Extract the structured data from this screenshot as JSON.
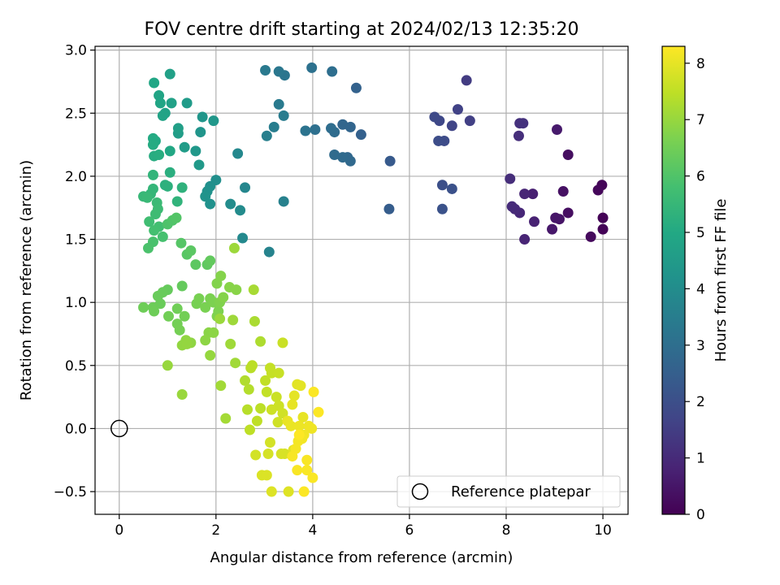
{
  "chart_data": {
    "type": "scatter",
    "title": "FOV centre drift starting at 2024/02/13 12:35:20",
    "xlabel": "Angular distance from reference (arcmin)",
    "ylabel": "Rotation from reference (arcmin)",
    "xlim": [
      -0.5,
      10.52
    ],
    "ylim": [
      -0.68,
      3.03
    ],
    "x_ticks": [
      0,
      2,
      4,
      6,
      8,
      10
    ],
    "x_tick_labels": [
      "0",
      "2",
      "4",
      "6",
      "8",
      "10"
    ],
    "y_ticks": [
      -0.5,
      0.0,
      0.5,
      1.0,
      1.5,
      2.0,
      2.5,
      3.0
    ],
    "y_tick_labels": [
      "−0.5",
      "0.0",
      "0.5",
      "1.0",
      "1.5",
      "2.0",
      "2.5",
      "3.0"
    ],
    "grid": true,
    "legend": {
      "position": "lower-right",
      "entries": [
        "Reference platepar"
      ]
    },
    "reference_point": {
      "x": 0.0,
      "y": 0.0,
      "label": "Reference platepar",
      "marker": "open-circle"
    },
    "colorbar": {
      "label": "Hours from first FF file",
      "colormap": "viridis",
      "range": [
        0,
        8.3
      ],
      "ticks": [
        0,
        1,
        2,
        3,
        4,
        5,
        6,
        7,
        8
      ],
      "tick_labels": [
        "0",
        "1",
        "2",
        "3",
        "4",
        "5",
        "6",
        "7",
        "8"
      ]
    },
    "points": [
      {
        "x": 10.0,
        "y": 1.67,
        "c": 0.05
      },
      {
        "x": 10.0,
        "y": 1.58,
        "c": 0.08
      },
      {
        "x": 9.98,
        "y": 1.93,
        "c": 0.1
      },
      {
        "x": 9.9,
        "y": 1.89,
        "c": 0.15
      },
      {
        "x": 9.75,
        "y": 1.52,
        "c": 0.2
      },
      {
        "x": 9.28,
        "y": 2.17,
        "c": 0.3
      },
      {
        "x": 9.28,
        "y": 1.71,
        "c": 0.32
      },
      {
        "x": 9.18,
        "y": 1.88,
        "c": 0.38
      },
      {
        "x": 9.1,
        "y": 1.66,
        "c": 0.45
      },
      {
        "x": 9.02,
        "y": 1.67,
        "c": 0.5
      },
      {
        "x": 8.95,
        "y": 1.58,
        "c": 0.55
      },
      {
        "x": 9.05,
        "y": 2.37,
        "c": 0.6
      },
      {
        "x": 8.55,
        "y": 1.86,
        "c": 0.72
      },
      {
        "x": 8.58,
        "y": 1.64,
        "c": 0.78
      },
      {
        "x": 8.38,
        "y": 1.5,
        "c": 0.85
      },
      {
        "x": 8.38,
        "y": 1.86,
        "c": 0.88
      },
      {
        "x": 8.28,
        "y": 1.71,
        "c": 0.92
      },
      {
        "x": 8.18,
        "y": 1.74,
        "c": 0.98
      },
      {
        "x": 8.12,
        "y": 1.76,
        "c": 1.02
      },
      {
        "x": 8.08,
        "y": 1.98,
        "c": 1.08
      },
      {
        "x": 8.26,
        "y": 2.32,
        "c": 1.12
      },
      {
        "x": 8.28,
        "y": 2.42,
        "c": 1.18
      },
      {
        "x": 8.35,
        "y": 2.42,
        "c": 1.2
      },
      {
        "x": 7.18,
        "y": 2.76,
        "c": 1.45
      },
      {
        "x": 7.25,
        "y": 2.44,
        "c": 1.55
      },
      {
        "x": 7.0,
        "y": 2.53,
        "c": 1.62
      },
      {
        "x": 6.88,
        "y": 2.4,
        "c": 1.7
      },
      {
        "x": 6.62,
        "y": 2.44,
        "c": 1.78
      },
      {
        "x": 6.52,
        "y": 2.47,
        "c": 1.85
      },
      {
        "x": 6.72,
        "y": 2.28,
        "c": 1.9
      },
      {
        "x": 6.6,
        "y": 2.28,
        "c": 1.95
      },
      {
        "x": 6.68,
        "y": 1.93,
        "c": 2.0
      },
      {
        "x": 6.88,
        "y": 1.9,
        "c": 2.05
      },
      {
        "x": 6.68,
        "y": 1.74,
        "c": 2.1
      },
      {
        "x": 5.6,
        "y": 2.12,
        "c": 2.35
      },
      {
        "x": 5.58,
        "y": 1.74,
        "c": 2.42
      },
      {
        "x": 5.0,
        "y": 2.33,
        "c": 2.55
      },
      {
        "x": 4.9,
        "y": 2.7,
        "c": 2.6
      },
      {
        "x": 4.78,
        "y": 2.39,
        "c": 2.68
      },
      {
        "x": 4.62,
        "y": 2.41,
        "c": 2.72
      },
      {
        "x": 4.72,
        "y": 2.15,
        "c": 2.78
      },
      {
        "x": 4.78,
        "y": 2.12,
        "c": 2.82
      },
      {
        "x": 4.62,
        "y": 2.15,
        "c": 2.86
      },
      {
        "x": 4.45,
        "y": 2.17,
        "c": 2.9
      },
      {
        "x": 4.45,
        "y": 2.35,
        "c": 2.93
      },
      {
        "x": 4.38,
        "y": 2.38,
        "c": 2.96
      },
      {
        "x": 4.4,
        "y": 2.83,
        "c": 3.0
      },
      {
        "x": 4.05,
        "y": 2.37,
        "c": 3.05
      },
      {
        "x": 3.98,
        "y": 2.86,
        "c": 3.1
      },
      {
        "x": 3.85,
        "y": 2.36,
        "c": 3.15
      },
      {
        "x": 3.42,
        "y": 2.8,
        "c": 3.22
      },
      {
        "x": 3.3,
        "y": 2.83,
        "c": 3.28
      },
      {
        "x": 3.02,
        "y": 2.84,
        "c": 3.35
      },
      {
        "x": 3.3,
        "y": 2.57,
        "c": 3.4
      },
      {
        "x": 3.4,
        "y": 2.48,
        "c": 3.45
      },
      {
        "x": 3.2,
        "y": 2.39,
        "c": 3.5
      },
      {
        "x": 3.05,
        "y": 2.32,
        "c": 3.55
      },
      {
        "x": 3.4,
        "y": 1.8,
        "c": 3.62
      },
      {
        "x": 3.1,
        "y": 1.4,
        "c": 3.7
      },
      {
        "x": 2.6,
        "y": 1.91,
        "c": 3.78
      },
      {
        "x": 2.45,
        "y": 2.18,
        "c": 3.85
      },
      {
        "x": 2.55,
        "y": 1.51,
        "c": 3.9
      },
      {
        "x": 2.5,
        "y": 1.73,
        "c": 3.95
      },
      {
        "x": 2.3,
        "y": 1.78,
        "c": 4.0
      },
      {
        "x": 2.0,
        "y": 1.97,
        "c": 4.08
      },
      {
        "x": 1.88,
        "y": 1.92,
        "c": 4.12
      },
      {
        "x": 1.88,
        "y": 1.78,
        "c": 4.16
      },
      {
        "x": 1.82,
        "y": 1.88,
        "c": 4.2
      },
      {
        "x": 1.78,
        "y": 1.84,
        "c": 4.24
      },
      {
        "x": 1.68,
        "y": 2.35,
        "c": 4.28
      },
      {
        "x": 1.72,
        "y": 2.47,
        "c": 4.32
      },
      {
        "x": 1.95,
        "y": 2.44,
        "c": 4.36
      },
      {
        "x": 1.58,
        "y": 2.2,
        "c": 4.4
      },
      {
        "x": 1.65,
        "y": 2.09,
        "c": 4.44
      },
      {
        "x": 1.4,
        "y": 2.58,
        "c": 4.5
      },
      {
        "x": 1.35,
        "y": 2.23,
        "c": 4.55
      },
      {
        "x": 1.22,
        "y": 2.34,
        "c": 4.6
      },
      {
        "x": 1.22,
        "y": 2.38,
        "c": 4.64
      },
      {
        "x": 1.05,
        "y": 2.81,
        "c": 4.68
      },
      {
        "x": 1.08,
        "y": 2.58,
        "c": 4.72
      },
      {
        "x": 0.95,
        "y": 2.5,
        "c": 4.76
      },
      {
        "x": 0.9,
        "y": 2.48,
        "c": 4.8
      },
      {
        "x": 0.82,
        "y": 2.64,
        "c": 4.84
      },
      {
        "x": 0.85,
        "y": 2.58,
        "c": 4.88
      },
      {
        "x": 0.72,
        "y": 2.74,
        "c": 4.92
      },
      {
        "x": 1.05,
        "y": 2.2,
        "c": 4.96
      },
      {
        "x": 0.75,
        "y": 2.28,
        "c": 5.0
      },
      {
        "x": 0.7,
        "y": 2.3,
        "c": 5.04
      },
      {
        "x": 0.7,
        "y": 2.25,
        "c": 5.08
      },
      {
        "x": 0.72,
        "y": 2.16,
        "c": 5.12
      },
      {
        "x": 0.82,
        "y": 2.17,
        "c": 5.16
      },
      {
        "x": 1.05,
        "y": 2.03,
        "c": 5.2
      },
      {
        "x": 0.95,
        "y": 1.93,
        "c": 5.24
      },
      {
        "x": 1.0,
        "y": 1.92,
        "c": 5.28
      },
      {
        "x": 1.3,
        "y": 1.91,
        "c": 5.32
      },
      {
        "x": 1.2,
        "y": 1.8,
        "c": 5.36
      },
      {
        "x": 0.7,
        "y": 2.01,
        "c": 5.4
      },
      {
        "x": 0.7,
        "y": 1.9,
        "c": 5.44
      },
      {
        "x": 0.65,
        "y": 1.86,
        "c": 5.48
      },
      {
        "x": 0.5,
        "y": 1.84,
        "c": 5.52
      },
      {
        "x": 0.58,
        "y": 1.83,
        "c": 5.56
      },
      {
        "x": 0.78,
        "y": 1.79,
        "c": 5.6
      },
      {
        "x": 0.8,
        "y": 1.74,
        "c": 5.64
      },
      {
        "x": 0.75,
        "y": 1.7,
        "c": 5.68
      },
      {
        "x": 0.62,
        "y": 1.64,
        "c": 5.72
      },
      {
        "x": 0.82,
        "y": 1.6,
        "c": 5.76
      },
      {
        "x": 0.72,
        "y": 1.57,
        "c": 5.8
      },
      {
        "x": 0.9,
        "y": 1.52,
        "c": 5.84
      },
      {
        "x": 0.7,
        "y": 1.48,
        "c": 5.88
      },
      {
        "x": 0.6,
        "y": 1.43,
        "c": 5.92
      },
      {
        "x": 1.0,
        "y": 1.62,
        "c": 5.96
      },
      {
        "x": 1.1,
        "y": 1.65,
        "c": 6.0
      },
      {
        "x": 1.18,
        "y": 1.67,
        "c": 6.04
      },
      {
        "x": 1.28,
        "y": 1.47,
        "c": 6.08
      },
      {
        "x": 1.4,
        "y": 1.38,
        "c": 6.12
      },
      {
        "x": 1.48,
        "y": 1.41,
        "c": 6.16
      },
      {
        "x": 1.58,
        "y": 1.3,
        "c": 6.2
      },
      {
        "x": 1.82,
        "y": 1.3,
        "c": 6.24
      },
      {
        "x": 1.88,
        "y": 1.33,
        "c": 6.28
      },
      {
        "x": 1.3,
        "y": 1.13,
        "c": 6.32
      },
      {
        "x": 1.0,
        "y": 1.1,
        "c": 6.34
      },
      {
        "x": 0.9,
        "y": 1.08,
        "c": 6.36
      },
      {
        "x": 0.8,
        "y": 1.05,
        "c": 6.38
      },
      {
        "x": 0.85,
        "y": 0.99,
        "c": 6.4
      },
      {
        "x": 0.7,
        "y": 0.96,
        "c": 6.42
      },
      {
        "x": 0.72,
        "y": 0.93,
        "c": 6.44
      },
      {
        "x": 0.5,
        "y": 0.96,
        "c": 6.46
      },
      {
        "x": 1.2,
        "y": 0.95,
        "c": 6.48
      },
      {
        "x": 1.02,
        "y": 0.89,
        "c": 6.5
      },
      {
        "x": 1.35,
        "y": 0.89,
        "c": 6.52
      },
      {
        "x": 1.2,
        "y": 0.83,
        "c": 6.54
      },
      {
        "x": 1.25,
        "y": 0.78,
        "c": 6.56
      },
      {
        "x": 1.6,
        "y": 0.99,
        "c": 6.58
      },
      {
        "x": 1.65,
        "y": 1.03,
        "c": 6.6
      },
      {
        "x": 1.78,
        "y": 0.96,
        "c": 6.62
      },
      {
        "x": 1.88,
        "y": 1.03,
        "c": 6.64
      },
      {
        "x": 1.95,
        "y": 1.0,
        "c": 6.66
      },
      {
        "x": 2.05,
        "y": 0.93,
        "c": 6.68
      },
      {
        "x": 2.02,
        "y": 0.89,
        "c": 6.7
      },
      {
        "x": 2.08,
        "y": 1.0,
        "c": 6.72
      },
      {
        "x": 2.02,
        "y": 1.15,
        "c": 6.74
      },
      {
        "x": 2.1,
        "y": 1.21,
        "c": 6.76
      },
      {
        "x": 2.15,
        "y": 1.04,
        "c": 6.78
      },
      {
        "x": 2.28,
        "y": 1.12,
        "c": 6.8
      },
      {
        "x": 2.42,
        "y": 1.1,
        "c": 6.82
      },
      {
        "x": 1.85,
        "y": 0.76,
        "c": 6.84
      },
      {
        "x": 1.95,
        "y": 0.76,
        "c": 6.86
      },
      {
        "x": 1.78,
        "y": 0.7,
        "c": 6.88
      },
      {
        "x": 1.48,
        "y": 0.68,
        "c": 6.9
      },
      {
        "x": 1.38,
        "y": 0.7,
        "c": 6.92
      },
      {
        "x": 1.3,
        "y": 0.66,
        "c": 6.94
      },
      {
        "x": 1.4,
        "y": 0.67,
        "c": 6.96
      },
      {
        "x": 1.88,
        "y": 0.58,
        "c": 6.98
      },
      {
        "x": 1.0,
        "y": 0.5,
        "c": 7.0
      },
      {
        "x": 1.3,
        "y": 0.27,
        "c": 7.02
      },
      {
        "x": 2.08,
        "y": 0.87,
        "c": 7.04
      },
      {
        "x": 2.38,
        "y": 1.43,
        "c": 7.06
      },
      {
        "x": 2.35,
        "y": 0.86,
        "c": 7.08
      },
      {
        "x": 2.3,
        "y": 0.67,
        "c": 7.1
      },
      {
        "x": 2.4,
        "y": 0.52,
        "c": 7.12
      },
      {
        "x": 2.1,
        "y": 0.34,
        "c": 7.14
      },
      {
        "x": 2.2,
        "y": 0.08,
        "c": 7.16
      },
      {
        "x": 2.78,
        "y": 1.1,
        "c": 7.2
      },
      {
        "x": 2.8,
        "y": 0.85,
        "c": 7.24
      },
      {
        "x": 2.92,
        "y": 0.69,
        "c": 7.28
      },
      {
        "x": 2.6,
        "y": 0.38,
        "c": 7.32
      },
      {
        "x": 2.68,
        "y": 0.31,
        "c": 7.36
      },
      {
        "x": 2.65,
        "y": 0.15,
        "c": 7.4
      },
      {
        "x": 2.72,
        "y": 0.48,
        "c": 7.42
      },
      {
        "x": 2.75,
        "y": 0.5,
        "c": 7.44
      },
      {
        "x": 2.92,
        "y": 0.16,
        "c": 7.46
      },
      {
        "x": 2.7,
        "y": -0.01,
        "c": 7.48
      },
      {
        "x": 2.85,
        "y": 0.06,
        "c": 7.5
      },
      {
        "x": 3.02,
        "y": 0.38,
        "c": 7.52
      },
      {
        "x": 3.05,
        "y": 0.29,
        "c": 7.54
      },
      {
        "x": 3.12,
        "y": 0.48,
        "c": 7.56
      },
      {
        "x": 3.15,
        "y": 0.44,
        "c": 7.58
      },
      {
        "x": 3.3,
        "y": 0.44,
        "c": 7.6
      },
      {
        "x": 3.38,
        "y": 0.68,
        "c": 7.62
      },
      {
        "x": 3.25,
        "y": 0.25,
        "c": 7.64
      },
      {
        "x": 3.3,
        "y": 0.18,
        "c": 7.66
      },
      {
        "x": 3.15,
        "y": 0.15,
        "c": 7.68
      },
      {
        "x": 3.28,
        "y": 0.05,
        "c": 7.7
      },
      {
        "x": 3.38,
        "y": 0.12,
        "c": 7.72
      },
      {
        "x": 2.82,
        "y": -0.21,
        "c": 7.74
      },
      {
        "x": 3.12,
        "y": -0.11,
        "c": 7.76
      },
      {
        "x": 3.08,
        "y": -0.2,
        "c": 7.78
      },
      {
        "x": 3.35,
        "y": -0.2,
        "c": 7.8
      },
      {
        "x": 3.42,
        "y": -0.2,
        "c": 7.82
      },
      {
        "x": 2.95,
        "y": -0.37,
        "c": 7.84
      },
      {
        "x": 3.05,
        "y": -0.37,
        "c": 7.86
      },
      {
        "x": 3.15,
        "y": -0.5,
        "c": 7.88
      },
      {
        "x": 3.5,
        "y": -0.5,
        "c": 7.9
      },
      {
        "x": 3.6,
        "y": -0.17,
        "c": 7.92
      },
      {
        "x": 3.68,
        "y": 0.35,
        "c": 7.94
      },
      {
        "x": 3.75,
        "y": 0.34,
        "c": 7.96
      },
      {
        "x": 3.62,
        "y": 0.26,
        "c": 7.98
      },
      {
        "x": 3.58,
        "y": 0.19,
        "c": 8.0
      },
      {
        "x": 3.8,
        "y": 0.09,
        "c": 8.02
      },
      {
        "x": 3.48,
        "y": 0.06,
        "c": 8.04
      },
      {
        "x": 3.55,
        "y": 0.02,
        "c": 8.06
      },
      {
        "x": 3.72,
        "y": 0.02,
        "c": 8.08
      },
      {
        "x": 3.92,
        "y": 0.02,
        "c": 8.1
      },
      {
        "x": 3.98,
        "y": 0.0,
        "c": 8.12
      },
      {
        "x": 3.82,
        "y": -0.05,
        "c": 8.14
      },
      {
        "x": 3.78,
        "y": -0.08,
        "c": 8.16
      },
      {
        "x": 3.7,
        "y": -0.1,
        "c": 8.18
      },
      {
        "x": 3.65,
        "y": -0.16,
        "c": 8.2
      },
      {
        "x": 3.58,
        "y": -0.22,
        "c": 8.22
      },
      {
        "x": 3.88,
        "y": -0.25,
        "c": 8.23
      },
      {
        "x": 3.68,
        "y": -0.33,
        "c": 8.24
      },
      {
        "x": 3.88,
        "y": -0.33,
        "c": 8.25
      },
      {
        "x": 4.0,
        "y": -0.39,
        "c": 8.26
      },
      {
        "x": 3.82,
        "y": -0.5,
        "c": 8.27
      },
      {
        "x": 4.02,
        "y": 0.29,
        "c": 8.28
      },
      {
        "x": 4.12,
        "y": 0.13,
        "c": 8.29
      },
      {
        "x": 3.72,
        "y": -0.05,
        "c": 8.3
      }
    ]
  }
}
